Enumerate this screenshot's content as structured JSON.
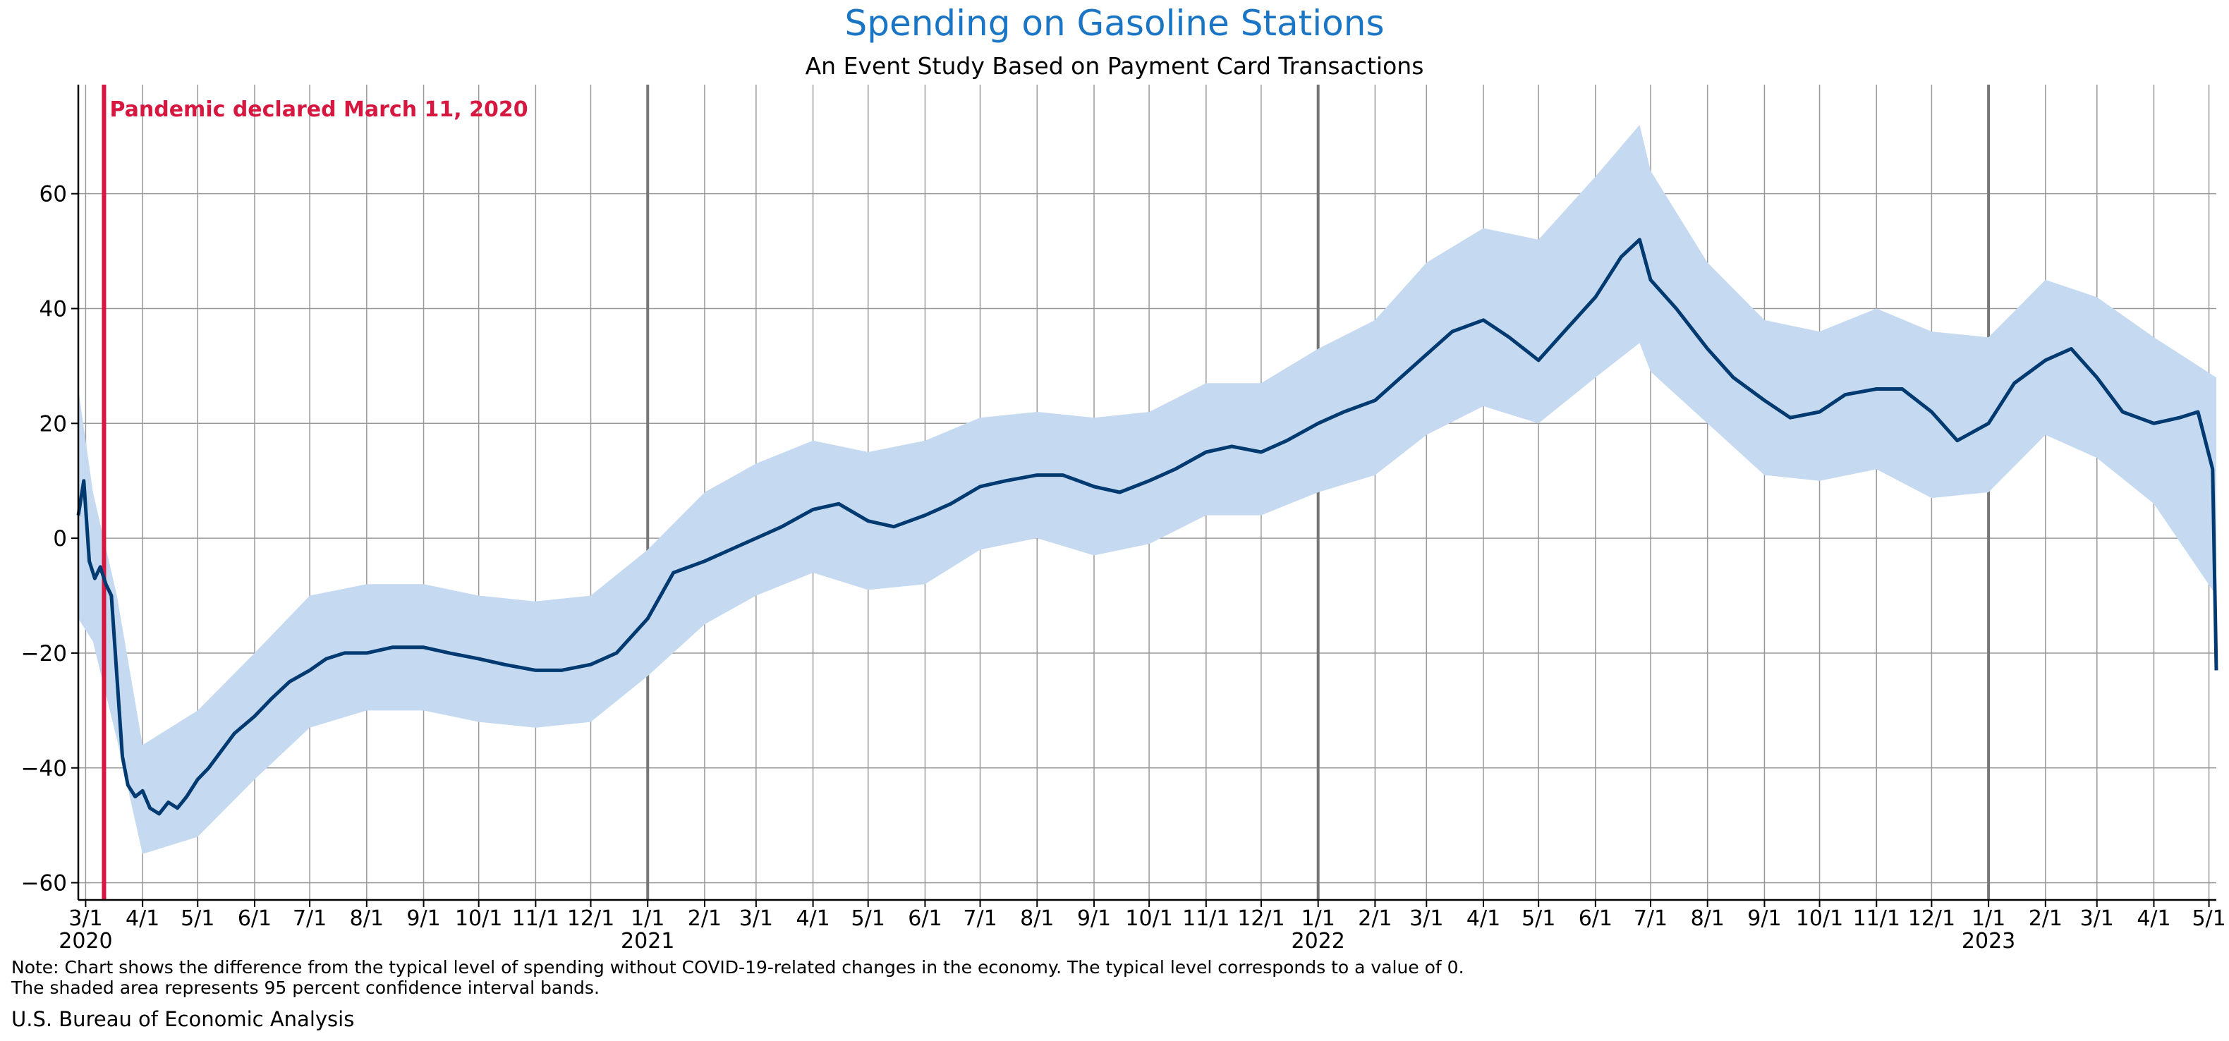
{
  "colors": {
    "title": "#1a75c4",
    "line": "#003a70",
    "band": "#c5d9f0",
    "event": "#d6173f",
    "grid": "#999999",
    "year_line": "#777777"
  },
  "note_lines": [
    "Note: Chart shows the difference from the typical level of spending without COVID-19-related changes in the economy. The typical level corresponds to a value of 0.",
    "The shaded area represents 95 percent confidence interval bands."
  ],
  "source": "U.S. Bureau of Economic Analysis",
  "chart_data": {
    "type": "line",
    "title": "Spending on Gasoline Stations",
    "subtitle": "An Event Study Based on Payment Card Transactions",
    "xlabel": "",
    "ylabel": "",
    "xlim": [
      "2020-02-26",
      "2023-05-05"
    ],
    "ylim": [
      -63,
      79
    ],
    "yticks": [
      -60,
      -40,
      -20,
      0,
      20,
      40,
      60
    ],
    "grid": true,
    "x_ticks": [
      {
        "date": "2020-03-01",
        "label": "3/1"
      },
      {
        "date": "2020-04-01",
        "label": "4/1"
      },
      {
        "date": "2020-05-01",
        "label": "5/1"
      },
      {
        "date": "2020-06-01",
        "label": "6/1"
      },
      {
        "date": "2020-07-01",
        "label": "7/1"
      },
      {
        "date": "2020-08-01",
        "label": "8/1"
      },
      {
        "date": "2020-09-01",
        "label": "9/1"
      },
      {
        "date": "2020-10-01",
        "label": "10/1"
      },
      {
        "date": "2020-11-01",
        "label": "11/1"
      },
      {
        "date": "2020-12-01",
        "label": "12/1"
      },
      {
        "date": "2021-01-01",
        "label": "1/1"
      },
      {
        "date": "2021-02-01",
        "label": "2/1"
      },
      {
        "date": "2021-03-01",
        "label": "3/1"
      },
      {
        "date": "2021-04-01",
        "label": "4/1"
      },
      {
        "date": "2021-05-01",
        "label": "5/1"
      },
      {
        "date": "2021-06-01",
        "label": "6/1"
      },
      {
        "date": "2021-07-01",
        "label": "7/1"
      },
      {
        "date": "2021-08-01",
        "label": "8/1"
      },
      {
        "date": "2021-09-01",
        "label": "9/1"
      },
      {
        "date": "2021-10-01",
        "label": "10/1"
      },
      {
        "date": "2021-11-01",
        "label": "11/1"
      },
      {
        "date": "2021-12-01",
        "label": "12/1"
      },
      {
        "date": "2022-01-01",
        "label": "1/1"
      },
      {
        "date": "2022-02-01",
        "label": "2/1"
      },
      {
        "date": "2022-03-01",
        "label": "3/1"
      },
      {
        "date": "2022-04-01",
        "label": "4/1"
      },
      {
        "date": "2022-05-01",
        "label": "5/1"
      },
      {
        "date": "2022-06-01",
        "label": "6/1"
      },
      {
        "date": "2022-07-01",
        "label": "7/1"
      },
      {
        "date": "2022-08-01",
        "label": "8/1"
      },
      {
        "date": "2022-09-01",
        "label": "9/1"
      },
      {
        "date": "2022-10-01",
        "label": "10/1"
      },
      {
        "date": "2022-11-01",
        "label": "11/1"
      },
      {
        "date": "2022-12-01",
        "label": "12/1"
      },
      {
        "date": "2023-01-01",
        "label": "1/1"
      },
      {
        "date": "2023-02-01",
        "label": "2/1"
      },
      {
        "date": "2023-03-01",
        "label": "3/1"
      },
      {
        "date": "2023-04-01",
        "label": "4/1"
      },
      {
        "date": "2023-05-01",
        "label": "5/1"
      }
    ],
    "year_labels": [
      {
        "date": "2020-03-01",
        "label": "2020"
      },
      {
        "date": "2021-01-01",
        "label": "2021"
      },
      {
        "date": "2022-01-01",
        "label": "2022"
      },
      {
        "date": "2023-01-01",
        "label": "2023"
      }
    ],
    "event": {
      "date": "2020-03-11",
      "label": "Pandemic declared March 11, 2020"
    },
    "series": [
      {
        "type": "line",
        "points": [
          [
            "2020-02-26",
            4
          ],
          [
            "2020-02-29",
            10
          ],
          [
            "2020-03-03",
            -4
          ],
          [
            "2020-03-06",
            -7
          ],
          [
            "2020-03-09",
            -5
          ],
          [
            "2020-03-12",
            -8
          ],
          [
            "2020-03-15",
            -10
          ],
          [
            "2020-03-18",
            -24
          ],
          [
            "2020-03-21",
            -38
          ],
          [
            "2020-03-24",
            -43
          ],
          [
            "2020-03-28",
            -45
          ],
          [
            "2020-04-01",
            -44
          ],
          [
            "2020-04-05",
            -47
          ],
          [
            "2020-04-10",
            -48
          ],
          [
            "2020-04-15",
            -46
          ],
          [
            "2020-04-20",
            -47
          ],
          [
            "2020-04-25",
            -45
          ],
          [
            "2020-05-01",
            -42
          ],
          [
            "2020-05-07",
            -40
          ],
          [
            "2020-05-14",
            -37
          ],
          [
            "2020-05-21",
            -34
          ],
          [
            "2020-06-01",
            -31
          ],
          [
            "2020-06-10",
            -28
          ],
          [
            "2020-06-20",
            -25
          ],
          [
            "2020-07-01",
            -23
          ],
          [
            "2020-07-10",
            -21
          ],
          [
            "2020-07-20",
            -20
          ],
          [
            "2020-08-01",
            -20
          ],
          [
            "2020-08-15",
            -19
          ],
          [
            "2020-09-01",
            -19
          ],
          [
            "2020-09-15",
            -20
          ],
          [
            "2020-10-01",
            -21
          ],
          [
            "2020-10-15",
            -22
          ],
          [
            "2020-11-01",
            -23
          ],
          [
            "2020-11-15",
            -23
          ],
          [
            "2020-12-01",
            -22
          ],
          [
            "2020-12-15",
            -20
          ],
          [
            "2021-01-01",
            -14
          ],
          [
            "2021-01-15",
            -6
          ],
          [
            "2021-02-01",
            -4
          ],
          [
            "2021-02-15",
            -2
          ],
          [
            "2021-03-01",
            0
          ],
          [
            "2021-03-15",
            2
          ],
          [
            "2021-04-01",
            5
          ],
          [
            "2021-04-15",
            6
          ],
          [
            "2021-05-01",
            3
          ],
          [
            "2021-05-15",
            2
          ],
          [
            "2021-06-01",
            4
          ],
          [
            "2021-06-15",
            6
          ],
          [
            "2021-07-01",
            9
          ],
          [
            "2021-07-15",
            10
          ],
          [
            "2021-08-01",
            11
          ],
          [
            "2021-08-15",
            11
          ],
          [
            "2021-09-01",
            9
          ],
          [
            "2021-09-15",
            8
          ],
          [
            "2021-10-01",
            10
          ],
          [
            "2021-10-15",
            12
          ],
          [
            "2021-11-01",
            15
          ],
          [
            "2021-11-15",
            16
          ],
          [
            "2021-12-01",
            15
          ],
          [
            "2021-12-15",
            17
          ],
          [
            "2022-01-01",
            20
          ],
          [
            "2022-01-15",
            22
          ],
          [
            "2022-02-01",
            24
          ],
          [
            "2022-02-15",
            28
          ],
          [
            "2022-03-01",
            32
          ],
          [
            "2022-03-15",
            36
          ],
          [
            "2022-04-01",
            38
          ],
          [
            "2022-04-15",
            35
          ],
          [
            "2022-05-01",
            31
          ],
          [
            "2022-05-15",
            36
          ],
          [
            "2022-06-01",
            42
          ],
          [
            "2022-06-15",
            49
          ],
          [
            "2022-06-25",
            52
          ],
          [
            "2022-07-01",
            45
          ],
          [
            "2022-07-15",
            40
          ],
          [
            "2022-08-01",
            33
          ],
          [
            "2022-08-15",
            28
          ],
          [
            "2022-09-01",
            24
          ],
          [
            "2022-09-15",
            21
          ],
          [
            "2022-10-01",
            22
          ],
          [
            "2022-10-15",
            25
          ],
          [
            "2022-11-01",
            26
          ],
          [
            "2022-11-15",
            26
          ],
          [
            "2022-12-01",
            22
          ],
          [
            "2022-12-15",
            17
          ],
          [
            "2023-01-01",
            20
          ],
          [
            "2023-01-15",
            27
          ],
          [
            "2023-02-01",
            31
          ],
          [
            "2023-02-15",
            33
          ],
          [
            "2023-03-01",
            28
          ],
          [
            "2023-03-15",
            22
          ],
          [
            "2023-04-01",
            20
          ],
          [
            "2023-04-15",
            21
          ],
          [
            "2023-04-25",
            22
          ],
          [
            "2023-05-03",
            12
          ],
          [
            "2023-05-05",
            -23
          ]
        ]
      },
      {
        "type": "band",
        "points": [
          [
            "2020-02-26",
            -14,
            26
          ],
          [
            "2020-03-05",
            -18,
            8
          ],
          [
            "2020-03-18",
            -35,
            -10
          ],
          [
            "2020-04-01",
            -55,
            -36
          ],
          [
            "2020-05-01",
            -52,
            -30
          ],
          [
            "2020-06-01",
            -42,
            -20
          ],
          [
            "2020-07-01",
            -33,
            -10
          ],
          [
            "2020-08-01",
            -30,
            -8
          ],
          [
            "2020-09-01",
            -30,
            -8
          ],
          [
            "2020-10-01",
            -32,
            -10
          ],
          [
            "2020-11-01",
            -33,
            -11
          ],
          [
            "2020-12-01",
            -32,
            -10
          ],
          [
            "2021-01-01",
            -24,
            -2
          ],
          [
            "2021-02-01",
            -15,
            8
          ],
          [
            "2021-03-01",
            -10,
            13
          ],
          [
            "2021-04-01",
            -6,
            17
          ],
          [
            "2021-05-01",
            -9,
            15
          ],
          [
            "2021-06-01",
            -8,
            17
          ],
          [
            "2021-07-01",
            -2,
            21
          ],
          [
            "2021-08-01",
            0,
            22
          ],
          [
            "2021-09-01",
            -3,
            21
          ],
          [
            "2021-10-01",
            -1,
            22
          ],
          [
            "2021-11-01",
            4,
            27
          ],
          [
            "2021-12-01",
            4,
            27
          ],
          [
            "2022-01-01",
            8,
            33
          ],
          [
            "2022-02-01",
            11,
            38
          ],
          [
            "2022-03-01",
            18,
            48
          ],
          [
            "2022-04-01",
            23,
            54
          ],
          [
            "2022-05-01",
            20,
            52
          ],
          [
            "2022-06-01",
            28,
            63
          ],
          [
            "2022-06-25",
            34,
            72
          ],
          [
            "2022-07-01",
            29,
            64
          ],
          [
            "2022-08-01",
            20,
            48
          ],
          [
            "2022-09-01",
            11,
            38
          ],
          [
            "2022-10-01",
            10,
            36
          ],
          [
            "2022-11-01",
            12,
            40
          ],
          [
            "2022-12-01",
            7,
            36
          ],
          [
            "2023-01-01",
            8,
            35
          ],
          [
            "2023-02-01",
            18,
            45
          ],
          [
            "2023-03-01",
            14,
            42
          ],
          [
            "2023-04-01",
            6,
            35
          ],
          [
            "2023-05-05",
            -10,
            28
          ]
        ]
      }
    ]
  }
}
